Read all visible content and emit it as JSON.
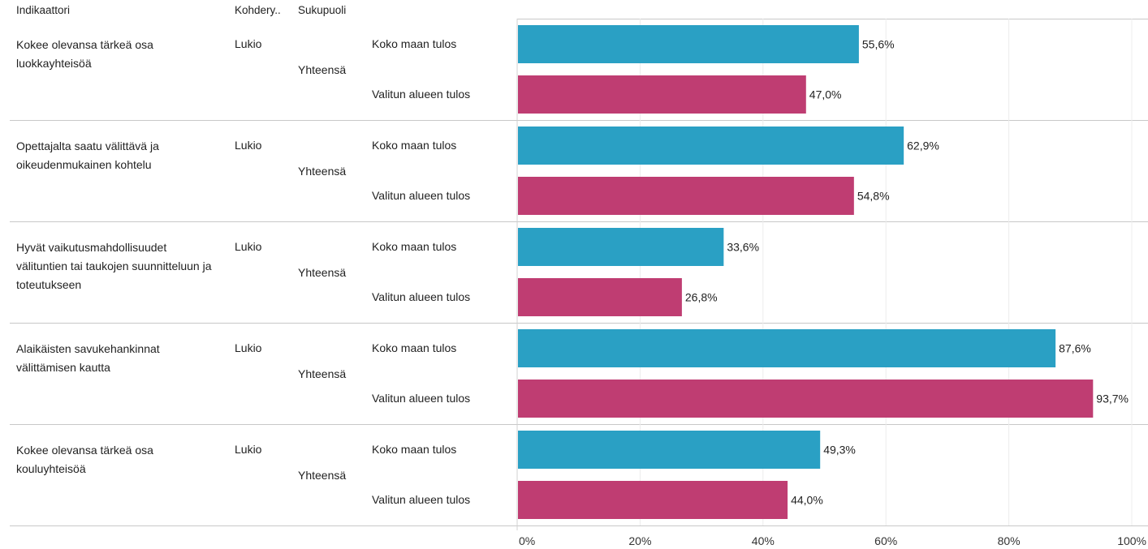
{
  "headers": {
    "indicator": "Indikaattori",
    "group": "Kohdery..",
    "gender": "Sukupuoli"
  },
  "colors": {
    "national": "#2aa0c4",
    "region": "#bf3d72"
  },
  "chart_data": {
    "type": "bar",
    "orientation": "horizontal",
    "xlim": [
      0,
      100
    ],
    "ticks": [
      "0%",
      "20%",
      "40%",
      "60%",
      "80%",
      "100%"
    ],
    "tick_values": [
      0,
      20,
      40,
      60,
      80,
      100
    ],
    "grid": true,
    "series_names": [
      "Koko maan tulos",
      "Valitun alueen tulos"
    ],
    "rows": [
      {
        "indicator": "Kokee olevansa tärkeä osa luokkayhteisöä",
        "group": "Lukio",
        "gender": "Yhteensä",
        "values": [
          55.6,
          47.0
        ],
        "labels": [
          "55,6%",
          "47,0%"
        ]
      },
      {
        "indicator": "Opettajalta saatu välittävä ja oikeudenmukainen kohtelu",
        "group": "Lukio",
        "gender": "Yhteensä",
        "values": [
          62.9,
          54.8
        ],
        "labels": [
          "62,9%",
          "54,8%"
        ]
      },
      {
        "indicator": "Hyvät vaikutusmahdollisuudet välituntien tai taukojen suunnitteluun ja toteutukseen",
        "group": "Lukio",
        "gender": "Yhteensä",
        "values": [
          33.6,
          26.8
        ],
        "labels": [
          "33,6%",
          "26,8%"
        ]
      },
      {
        "indicator": "Alaikäisten savukehankinnat välittämisen kautta",
        "group": "Lukio",
        "gender": "Yhteensä",
        "values": [
          87.6,
          93.7
        ],
        "labels": [
          "87,6%",
          "93,7%"
        ]
      },
      {
        "indicator": "Kokee olevansa tärkeä osa kouluyhteisöä",
        "group": "Lukio",
        "gender": "Yhteensä",
        "values": [
          49.3,
          44.0
        ],
        "labels": [
          "49,3%",
          "44,0%"
        ]
      }
    ]
  }
}
